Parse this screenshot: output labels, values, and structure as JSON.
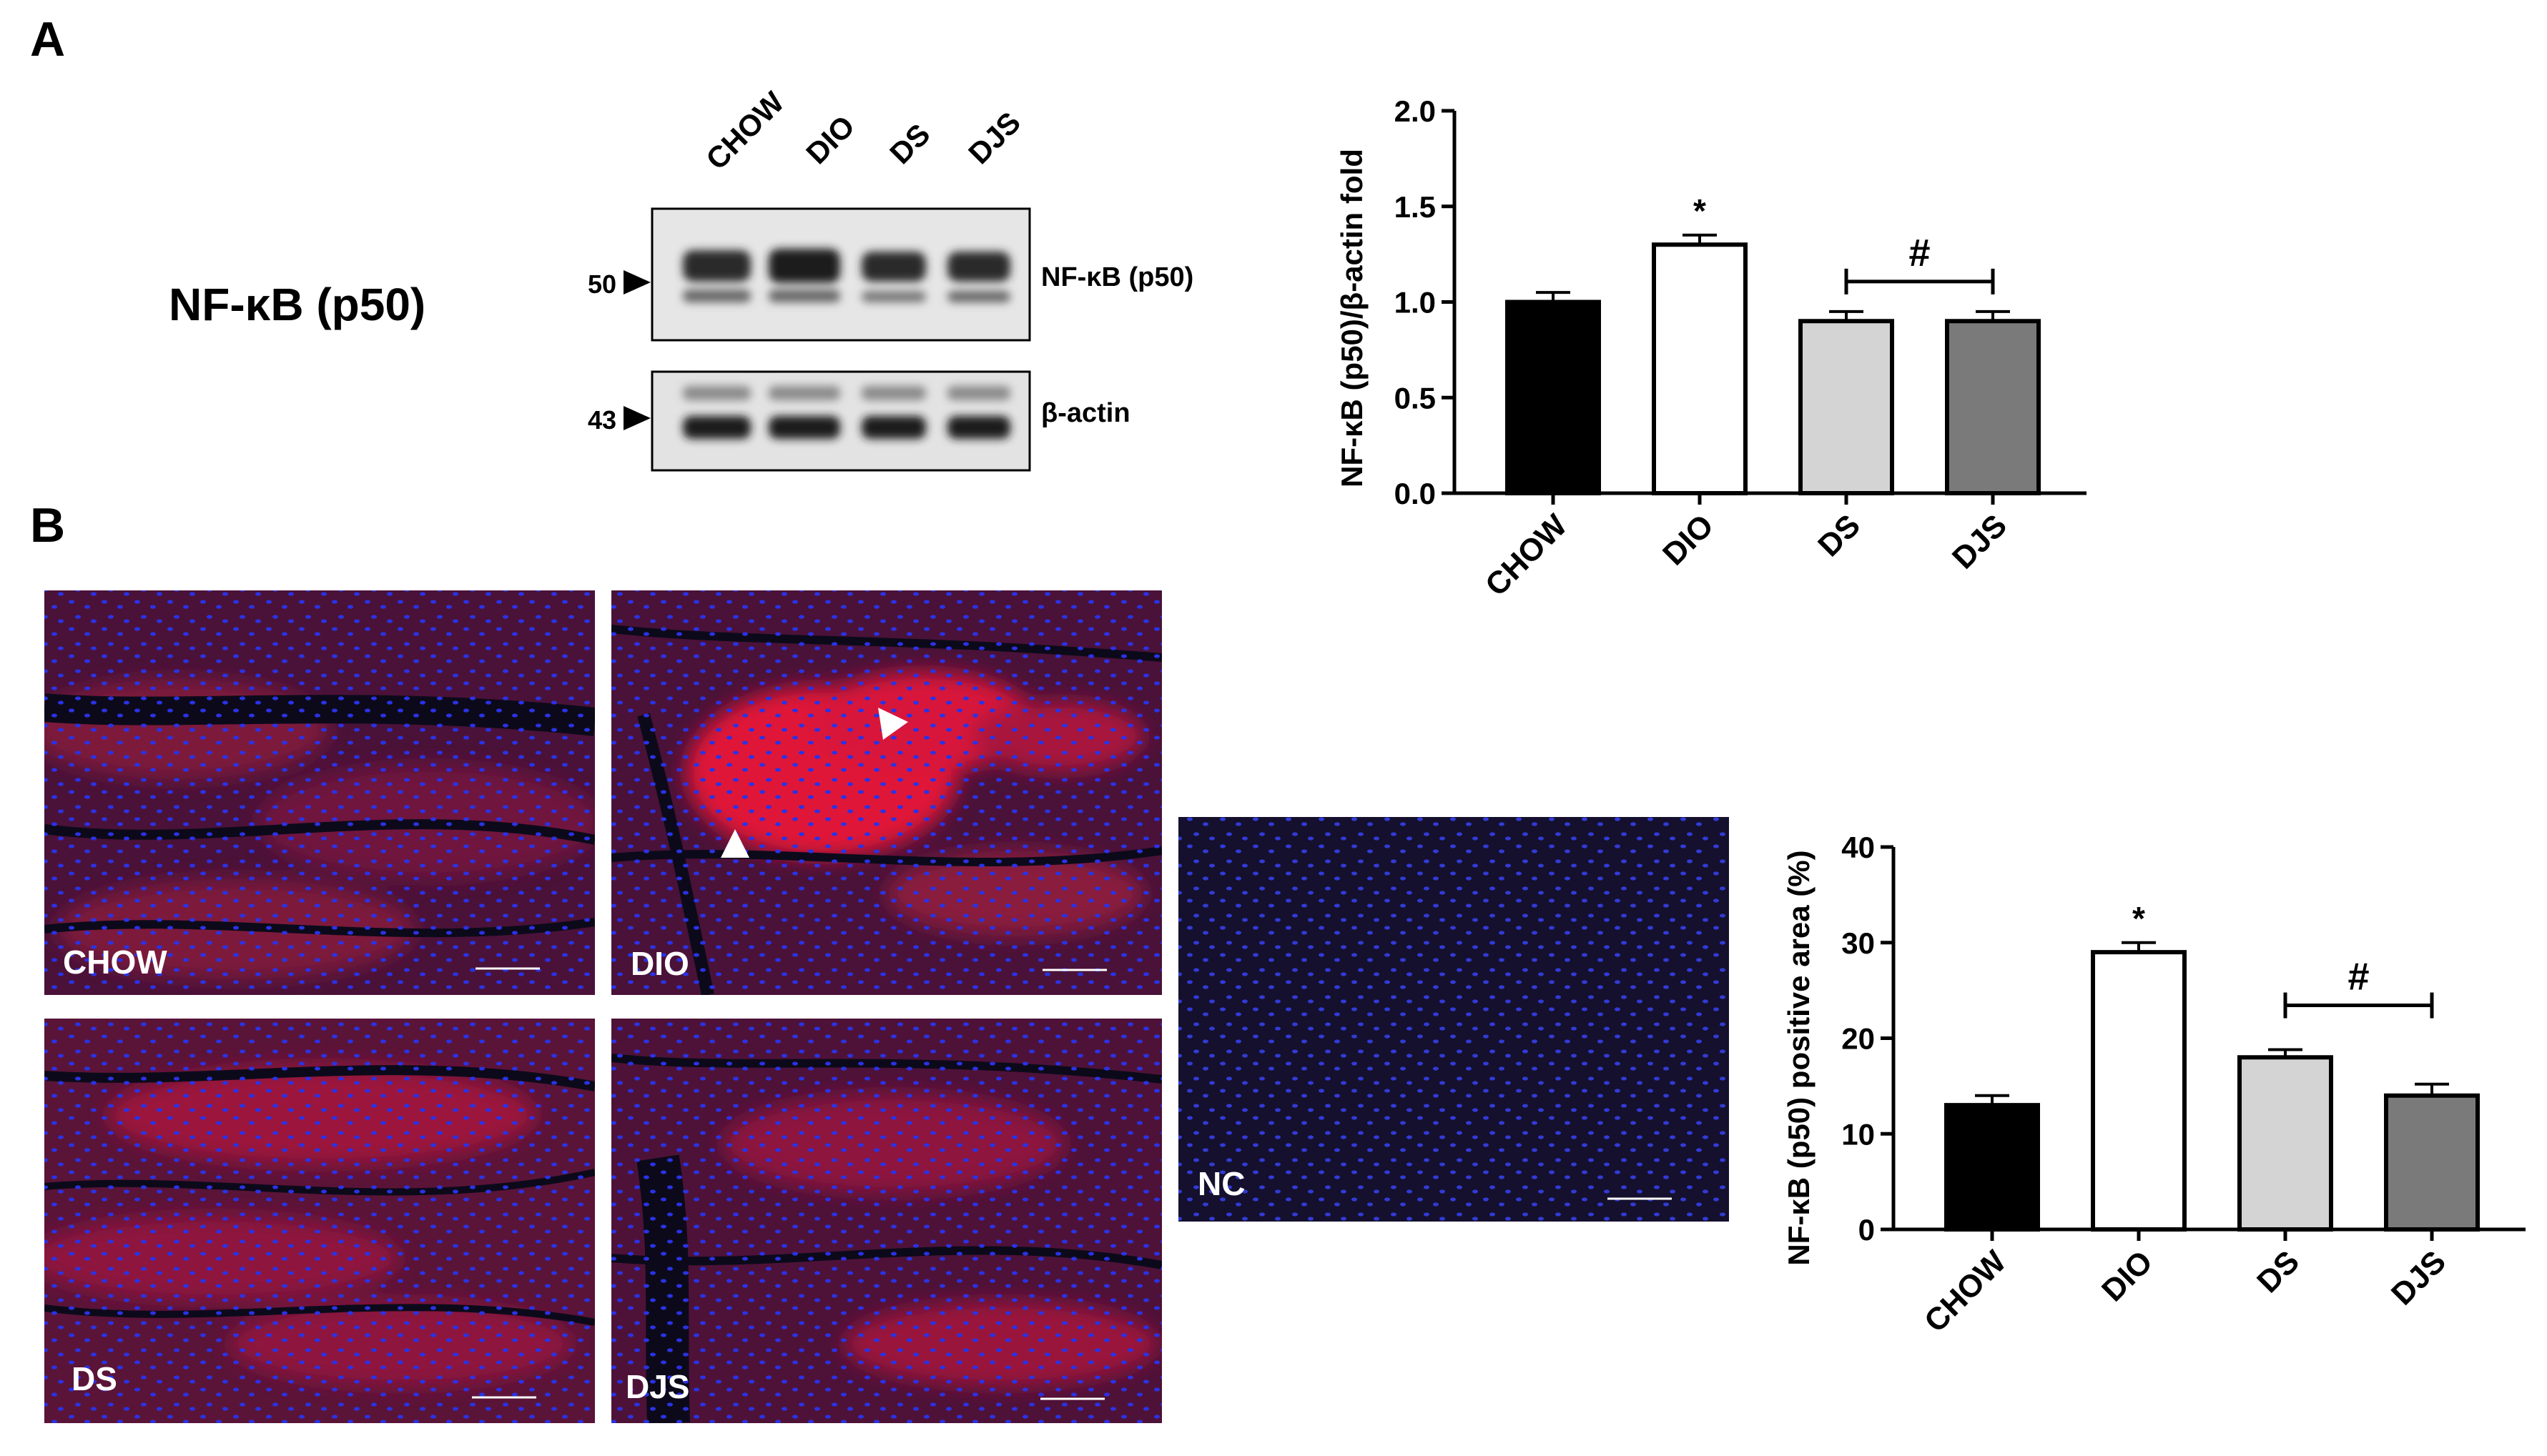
{
  "panel_labels": {
    "a": "A",
    "b": "B"
  },
  "blot": {
    "protein_title": "NF-κB (p50)",
    "lanes": [
      "CHOW",
      "DIO",
      "DS",
      "DJS"
    ],
    "bands": [
      {
        "marker": "50",
        "label": "NF-κB (p50)"
      },
      {
        "marker": "43",
        "label": "β-actin"
      }
    ]
  },
  "micrographs": {
    "labels": [
      "CHOW",
      "DIO",
      "DS",
      "DJS",
      "NC"
    ]
  },
  "colors": {
    "chow": "#000000",
    "dio": "#ffffff",
    "ds": "#d4d4d4",
    "djs": "#7a7a7a",
    "tissue_red": "#c8122e",
    "nuclei_blue": "#2a32e6",
    "background_dark": "#14102e"
  },
  "chart_data": [
    {
      "type": "bar",
      "categories": [
        "CHOW",
        "DIO",
        "DS",
        "DJS"
      ],
      "values": [
        1.0,
        1.3,
        0.9,
        0.9
      ],
      "errors": [
        0.05,
        0.05,
        0.05,
        0.05
      ],
      "ylabel": "NF-κB (p50)/β-actin fold",
      "ylim": [
        0,
        2.0
      ],
      "yticks": [
        "0.0",
        "0.5",
        "1.0",
        "1.5",
        "2.0"
      ],
      "annotations": [
        {
          "category": "DIO",
          "text": "*"
        },
        {
          "from": "DS",
          "to": "DJS",
          "text": "#"
        }
      ]
    },
    {
      "type": "bar",
      "categories": [
        "CHOW",
        "DIO",
        "DS",
        "DJS"
      ],
      "values": [
        13,
        29,
        18,
        14
      ],
      "errors": [
        1,
        1,
        0.8,
        1.2
      ],
      "ylabel": "NF-κB (p50) positive area (%)",
      "ylim": [
        0,
        40
      ],
      "yticks": [
        "0",
        "10",
        "20",
        "30",
        "40"
      ],
      "annotations": [
        {
          "category": "DIO",
          "text": "*"
        },
        {
          "from": "DS",
          "to": "DJS",
          "text": "#"
        }
      ]
    }
  ]
}
